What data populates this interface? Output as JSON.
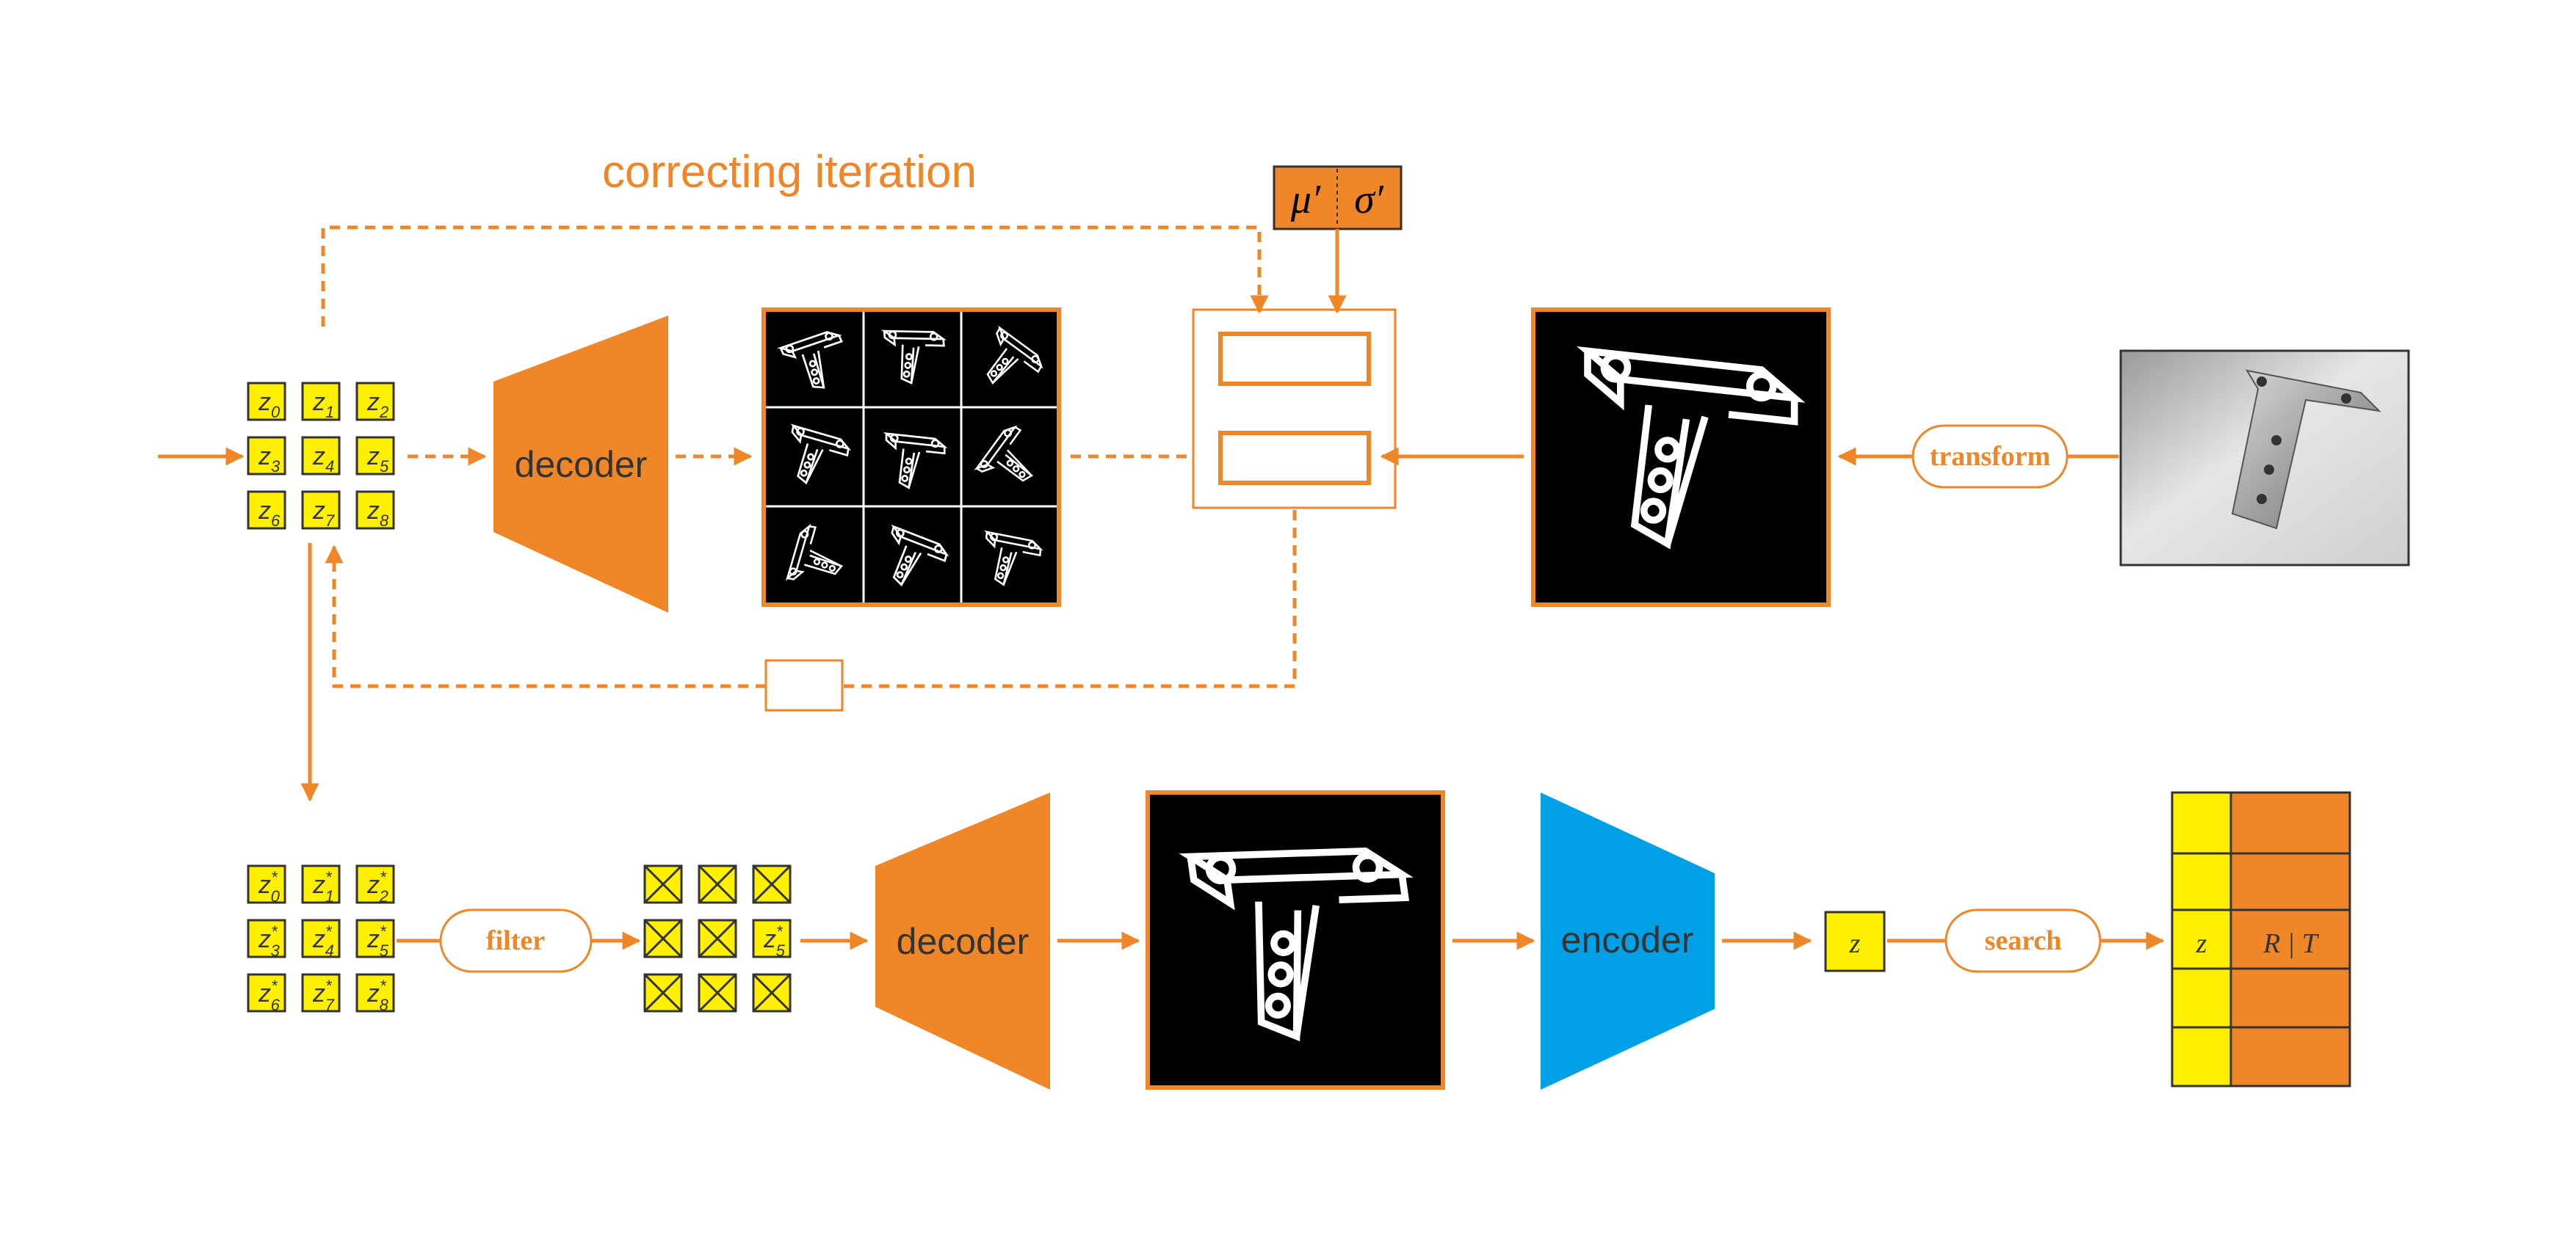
{
  "colors": {
    "accent": "#ef8627",
    "latent": "#ffef00",
    "encoder": "#00a0e6",
    "dark": "#000000",
    "text": "#333333"
  },
  "labels": {
    "correcting_iteration": "correcting iteration",
    "decoder_top": "decoder",
    "decoder_bottom": "decoder",
    "encoder": "encoder",
    "transform": "transform",
    "filter": "filter",
    "search": "search",
    "mu": "μ′",
    "sigma": "σ′",
    "z_single": "z",
    "table_z": "z",
    "table_rt": "R | T"
  },
  "latent_grid_top": [
    {
      "base": "z",
      "sub": "0"
    },
    {
      "base": "z",
      "sub": "1"
    },
    {
      "base": "z",
      "sub": "2"
    },
    {
      "base": "z",
      "sub": "3"
    },
    {
      "base": "z",
      "sub": "4"
    },
    {
      "base": "z",
      "sub": "5"
    },
    {
      "base": "z",
      "sub": "6"
    },
    {
      "base": "z",
      "sub": "7"
    },
    {
      "base": "z",
      "sub": "8"
    }
  ],
  "latent_grid_bottom": [
    {
      "base": "z",
      "sub": "0",
      "sup": "*"
    },
    {
      "base": "z",
      "sub": "1",
      "sup": "*"
    },
    {
      "base": "z",
      "sub": "2",
      "sup": "*"
    },
    {
      "base": "z",
      "sub": "3",
      "sup": "*"
    },
    {
      "base": "z",
      "sub": "4",
      "sup": "*"
    },
    {
      "base": "z",
      "sub": "5",
      "sup": "*"
    },
    {
      "base": "z",
      "sub": "6",
      "sup": "*"
    },
    {
      "base": "z",
      "sub": "7",
      "sup": "*"
    },
    {
      "base": "z",
      "sub": "8",
      "sup": "*"
    }
  ],
  "filtered_grid": [
    {
      "kept": false
    },
    {
      "kept": false
    },
    {
      "kept": false
    },
    {
      "kept": false
    },
    {
      "kept": false
    },
    {
      "kept": true,
      "base": "z",
      "sub": "5",
      "sup": "*"
    },
    {
      "kept": false
    },
    {
      "kept": false
    },
    {
      "kept": false
    }
  ]
}
